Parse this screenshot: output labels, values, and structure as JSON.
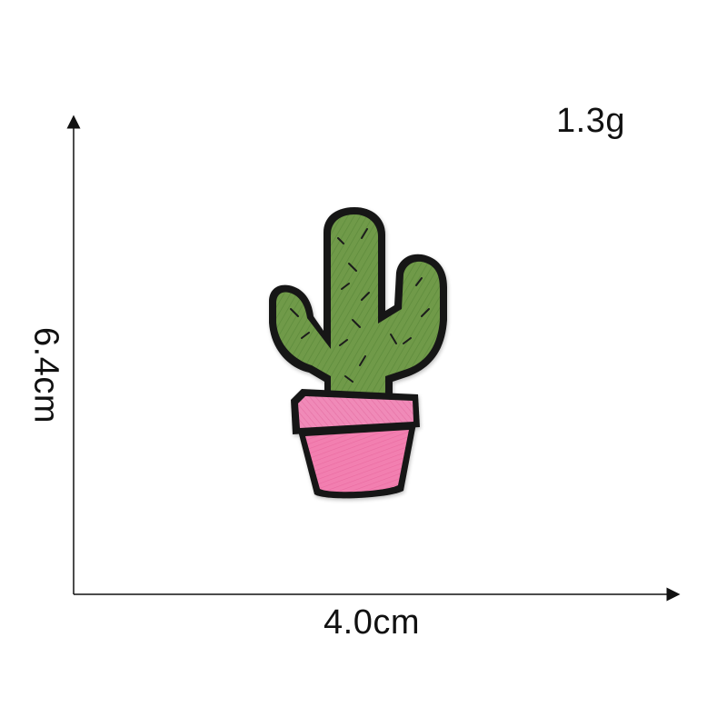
{
  "measurements": {
    "weight": "1.3g",
    "height": "6.4cm",
    "width": "4.0cm"
  },
  "colors": {
    "cactus_green": "#6f9a48",
    "pot_pink": "#f27fb0",
    "outline": "#161616"
  }
}
